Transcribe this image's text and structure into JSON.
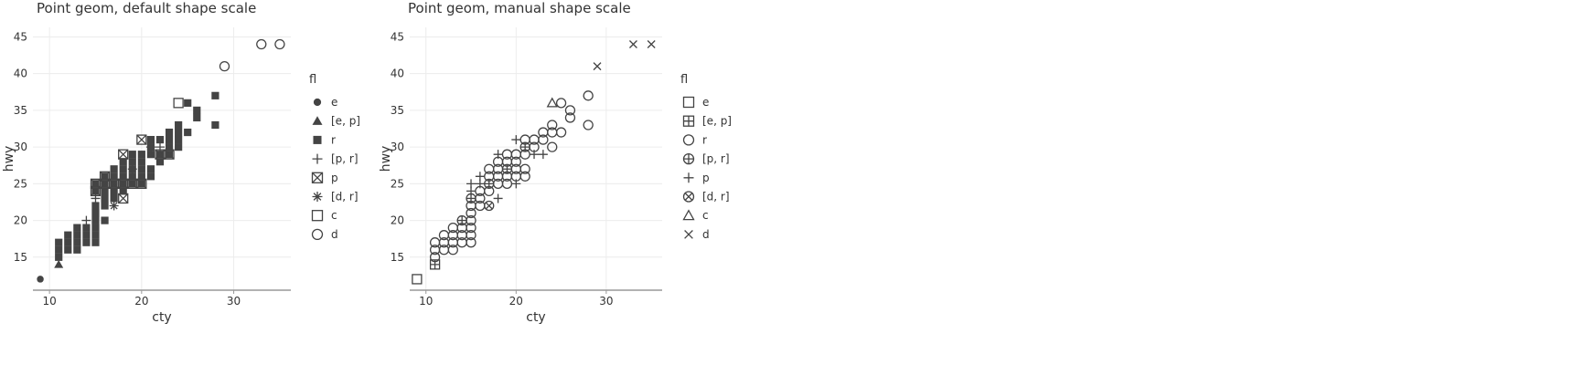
{
  "chart_data": [
    {
      "type": "scatter",
      "title": "Point geom, default shape scale",
      "xlabel": "cty",
      "ylabel": "hwy",
      "xlim": [
        8.2,
        36.2
      ],
      "ylim": [
        10.5,
        46.3
      ],
      "xticks": [
        10,
        20,
        30
      ],
      "yticks": [
        15,
        20,
        25,
        30,
        35,
        40,
        45
      ],
      "grid": true,
      "legend": {
        "title": "fl",
        "position": "right",
        "entries": [
          {
            "label": "e",
            "shape": "filled-circle"
          },
          {
            "label": "[e, p]",
            "shape": "filled-triangle"
          },
          {
            "label": "r",
            "shape": "filled-square"
          },
          {
            "label": "[p, r]",
            "shape": "plus"
          },
          {
            "label": "p",
            "shape": "square-cross"
          },
          {
            "label": "[d, r]",
            "shape": "asterisk"
          },
          {
            "label": "c",
            "shape": "open-square"
          },
          {
            "label": "d",
            "shape": "open-circle"
          }
        ]
      },
      "series": [
        {
          "name": "e",
          "shape": "filled-circle",
          "points": [
            [
              9,
              12
            ]
          ]
        },
        {
          "name": "[e, p]",
          "shape": "filled-triangle",
          "points": [
            [
              11,
              14
            ]
          ]
        },
        {
          "name": "r",
          "shape": "filled-square",
          "points": [
            [
              11,
              15
            ],
            [
              11,
              16
            ],
            [
              11,
              17
            ],
            [
              12,
              16
            ],
            [
              12,
              17
            ],
            [
              12,
              18
            ],
            [
              13,
              16
            ],
            [
              13,
              17
            ],
            [
              13,
              18
            ],
            [
              13,
              19
            ],
            [
              14,
              17
            ],
            [
              14,
              18
            ],
            [
              14,
              19
            ],
            [
              15,
              17
            ],
            [
              15,
              18
            ],
            [
              15,
              19
            ],
            [
              15,
              20
            ],
            [
              15,
              21
            ],
            [
              15,
              22
            ],
            [
              15,
              24
            ],
            [
              15,
              25
            ],
            [
              16,
              20
            ],
            [
              16,
              22
            ],
            [
              16,
              23
            ],
            [
              16,
              24
            ],
            [
              16,
              25
            ],
            [
              16,
              26
            ],
            [
              17,
              23
            ],
            [
              17,
              24
            ],
            [
              17,
              25
            ],
            [
              17,
              26
            ],
            [
              17,
              27
            ],
            [
              18,
              24
            ],
            [
              18,
              25
            ],
            [
              18,
              26
            ],
            [
              18,
              27
            ],
            [
              18,
              28
            ],
            [
              19,
              25
            ],
            [
              19,
              26
            ],
            [
              19,
              27
            ],
            [
              19,
              28
            ],
            [
              19,
              29
            ],
            [
              20,
              25
            ],
            [
              20,
              26
            ],
            [
              20,
              27
            ],
            [
              20,
              28
            ],
            [
              20,
              29
            ],
            [
              21,
              26
            ],
            [
              21,
              27
            ],
            [
              21,
              29
            ],
            [
              21,
              30
            ],
            [
              21,
              31
            ],
            [
              22,
              28
            ],
            [
              22,
              29
            ],
            [
              22,
              31
            ],
            [
              23,
              29
            ],
            [
              23,
              30
            ],
            [
              23,
              31
            ],
            [
              23,
              32
            ],
            [
              24,
              30
            ],
            [
              24,
              31
            ],
            [
              24,
              32
            ],
            [
              24,
              33
            ],
            [
              25,
              32
            ],
            [
              25,
              36
            ],
            [
              26,
              34
            ],
            [
              26,
              35
            ],
            [
              28,
              33
            ],
            [
              28,
              37
            ]
          ]
        },
        {
          "name": "[p, r]",
          "shape": "plus",
          "points": [
            [
              14,
              20
            ],
            [
              15,
              23
            ],
            [
              19,
              27
            ],
            [
              21,
              30
            ],
            [
              22,
              30
            ]
          ]
        },
        {
          "name": "p",
          "shape": "square-cross",
          "points": [
            [
              15,
              24
            ],
            [
              15,
              25
            ],
            [
              16,
              25
            ],
            [
              16,
              26
            ],
            [
              17,
              25
            ],
            [
              18,
              23
            ],
            [
              18,
              25
            ],
            [
              18,
              29
            ],
            [
              19,
              25
            ],
            [
              20,
              25
            ],
            [
              20,
              31
            ],
            [
              22,
              29
            ],
            [
              23,
              29
            ]
          ]
        },
        {
          "name": "[d, r]",
          "shape": "asterisk",
          "points": [
            [
              17,
              22
            ]
          ]
        },
        {
          "name": "c",
          "shape": "open-square",
          "points": [
            [
              24,
              36
            ]
          ]
        },
        {
          "name": "d",
          "shape": "open-circle",
          "points": [
            [
              29,
              41
            ],
            [
              33,
              44
            ],
            [
              35,
              44
            ]
          ]
        }
      ]
    },
    {
      "type": "scatter",
      "title": "Point geom, manual shape scale",
      "xlabel": "cty",
      "ylabel": "hwy",
      "xlim": [
        8.2,
        36.2
      ],
      "ylim": [
        10.5,
        46.3
      ],
      "xticks": [
        10,
        20,
        30
      ],
      "yticks": [
        15,
        20,
        25,
        30,
        35,
        40,
        45
      ],
      "grid": true,
      "legend": {
        "title": "fl",
        "position": "right",
        "entries": [
          {
            "label": "e",
            "shape": "open-square"
          },
          {
            "label": "[e, p]",
            "shape": "square-plus"
          },
          {
            "label": "r",
            "shape": "open-circle"
          },
          {
            "label": "[p, r]",
            "shape": "circle-plus"
          },
          {
            "label": "p",
            "shape": "plus"
          },
          {
            "label": "[d, r]",
            "shape": "circle-cross"
          },
          {
            "label": "c",
            "shape": "open-triangle"
          },
          {
            "label": "d",
            "shape": "cross"
          }
        ]
      },
      "series": [
        {
          "name": "e",
          "shape": "open-square",
          "points": [
            [
              9,
              12
            ]
          ]
        },
        {
          "name": "[e, p]",
          "shape": "square-plus",
          "points": [
            [
              11,
              14
            ]
          ]
        },
        {
          "name": "r",
          "shape": "open-circle",
          "points": [
            [
              11,
              15
            ],
            [
              11,
              16
            ],
            [
              11,
              17
            ],
            [
              12,
              16
            ],
            [
              12,
              17
            ],
            [
              12,
              18
            ],
            [
              13,
              16
            ],
            [
              13,
              17
            ],
            [
              13,
              18
            ],
            [
              13,
              19
            ],
            [
              14,
              17
            ],
            [
              14,
              18
            ],
            [
              14,
              19
            ],
            [
              15,
              17
            ],
            [
              15,
              18
            ],
            [
              15,
              19
            ],
            [
              15,
              20
            ],
            [
              15,
              21
            ],
            [
              15,
              22
            ],
            [
              16,
              22
            ],
            [
              16,
              23
            ],
            [
              16,
              24
            ],
            [
              17,
              24
            ],
            [
              17,
              25
            ],
            [
              17,
              26
            ],
            [
              17,
              27
            ],
            [
              18,
              25
            ],
            [
              18,
              26
            ],
            [
              18,
              27
            ],
            [
              18,
              28
            ],
            [
              19,
              25
            ],
            [
              19,
              26
            ],
            [
              19,
              28
            ],
            [
              19,
              29
            ],
            [
              20,
              26
            ],
            [
              20,
              27
            ],
            [
              20,
              28
            ],
            [
              20,
              29
            ],
            [
              21,
              26
            ],
            [
              21,
              27
            ],
            [
              21,
              29
            ],
            [
              21,
              31
            ],
            [
              22,
              30
            ],
            [
              22,
              31
            ],
            [
              23,
              31
            ],
            [
              23,
              32
            ],
            [
              24,
              30
            ],
            [
              24,
              32
            ],
            [
              24,
              33
            ],
            [
              25,
              32
            ],
            [
              25,
              36
            ],
            [
              26,
              34
            ],
            [
              26,
              35
            ],
            [
              28,
              33
            ],
            [
              28,
              37
            ]
          ]
        },
        {
          "name": "[p, r]",
          "shape": "circle-plus",
          "points": [
            [
              14,
              20
            ],
            [
              15,
              23
            ],
            [
              19,
              27
            ],
            [
              21,
              30
            ]
          ]
        },
        {
          "name": "p",
          "shape": "plus",
          "points": [
            [
              15,
              24
            ],
            [
              15,
              25
            ],
            [
              16,
              25
            ],
            [
              16,
              26
            ],
            [
              17,
              25
            ],
            [
              18,
              23
            ],
            [
              18,
              29
            ],
            [
              20,
              25
            ],
            [
              20,
              31
            ],
            [
              22,
              29
            ],
            [
              23,
              29
            ]
          ]
        },
        {
          "name": "[d, r]",
          "shape": "circle-cross",
          "points": [
            [
              17,
              22
            ]
          ]
        },
        {
          "name": "c",
          "shape": "open-triangle",
          "points": [
            [
              24,
              36
            ]
          ]
        },
        {
          "name": "d",
          "shape": "cross",
          "points": [
            [
              29,
              41
            ],
            [
              33,
              44
            ],
            [
              35,
              44
            ]
          ]
        }
      ]
    }
  ]
}
